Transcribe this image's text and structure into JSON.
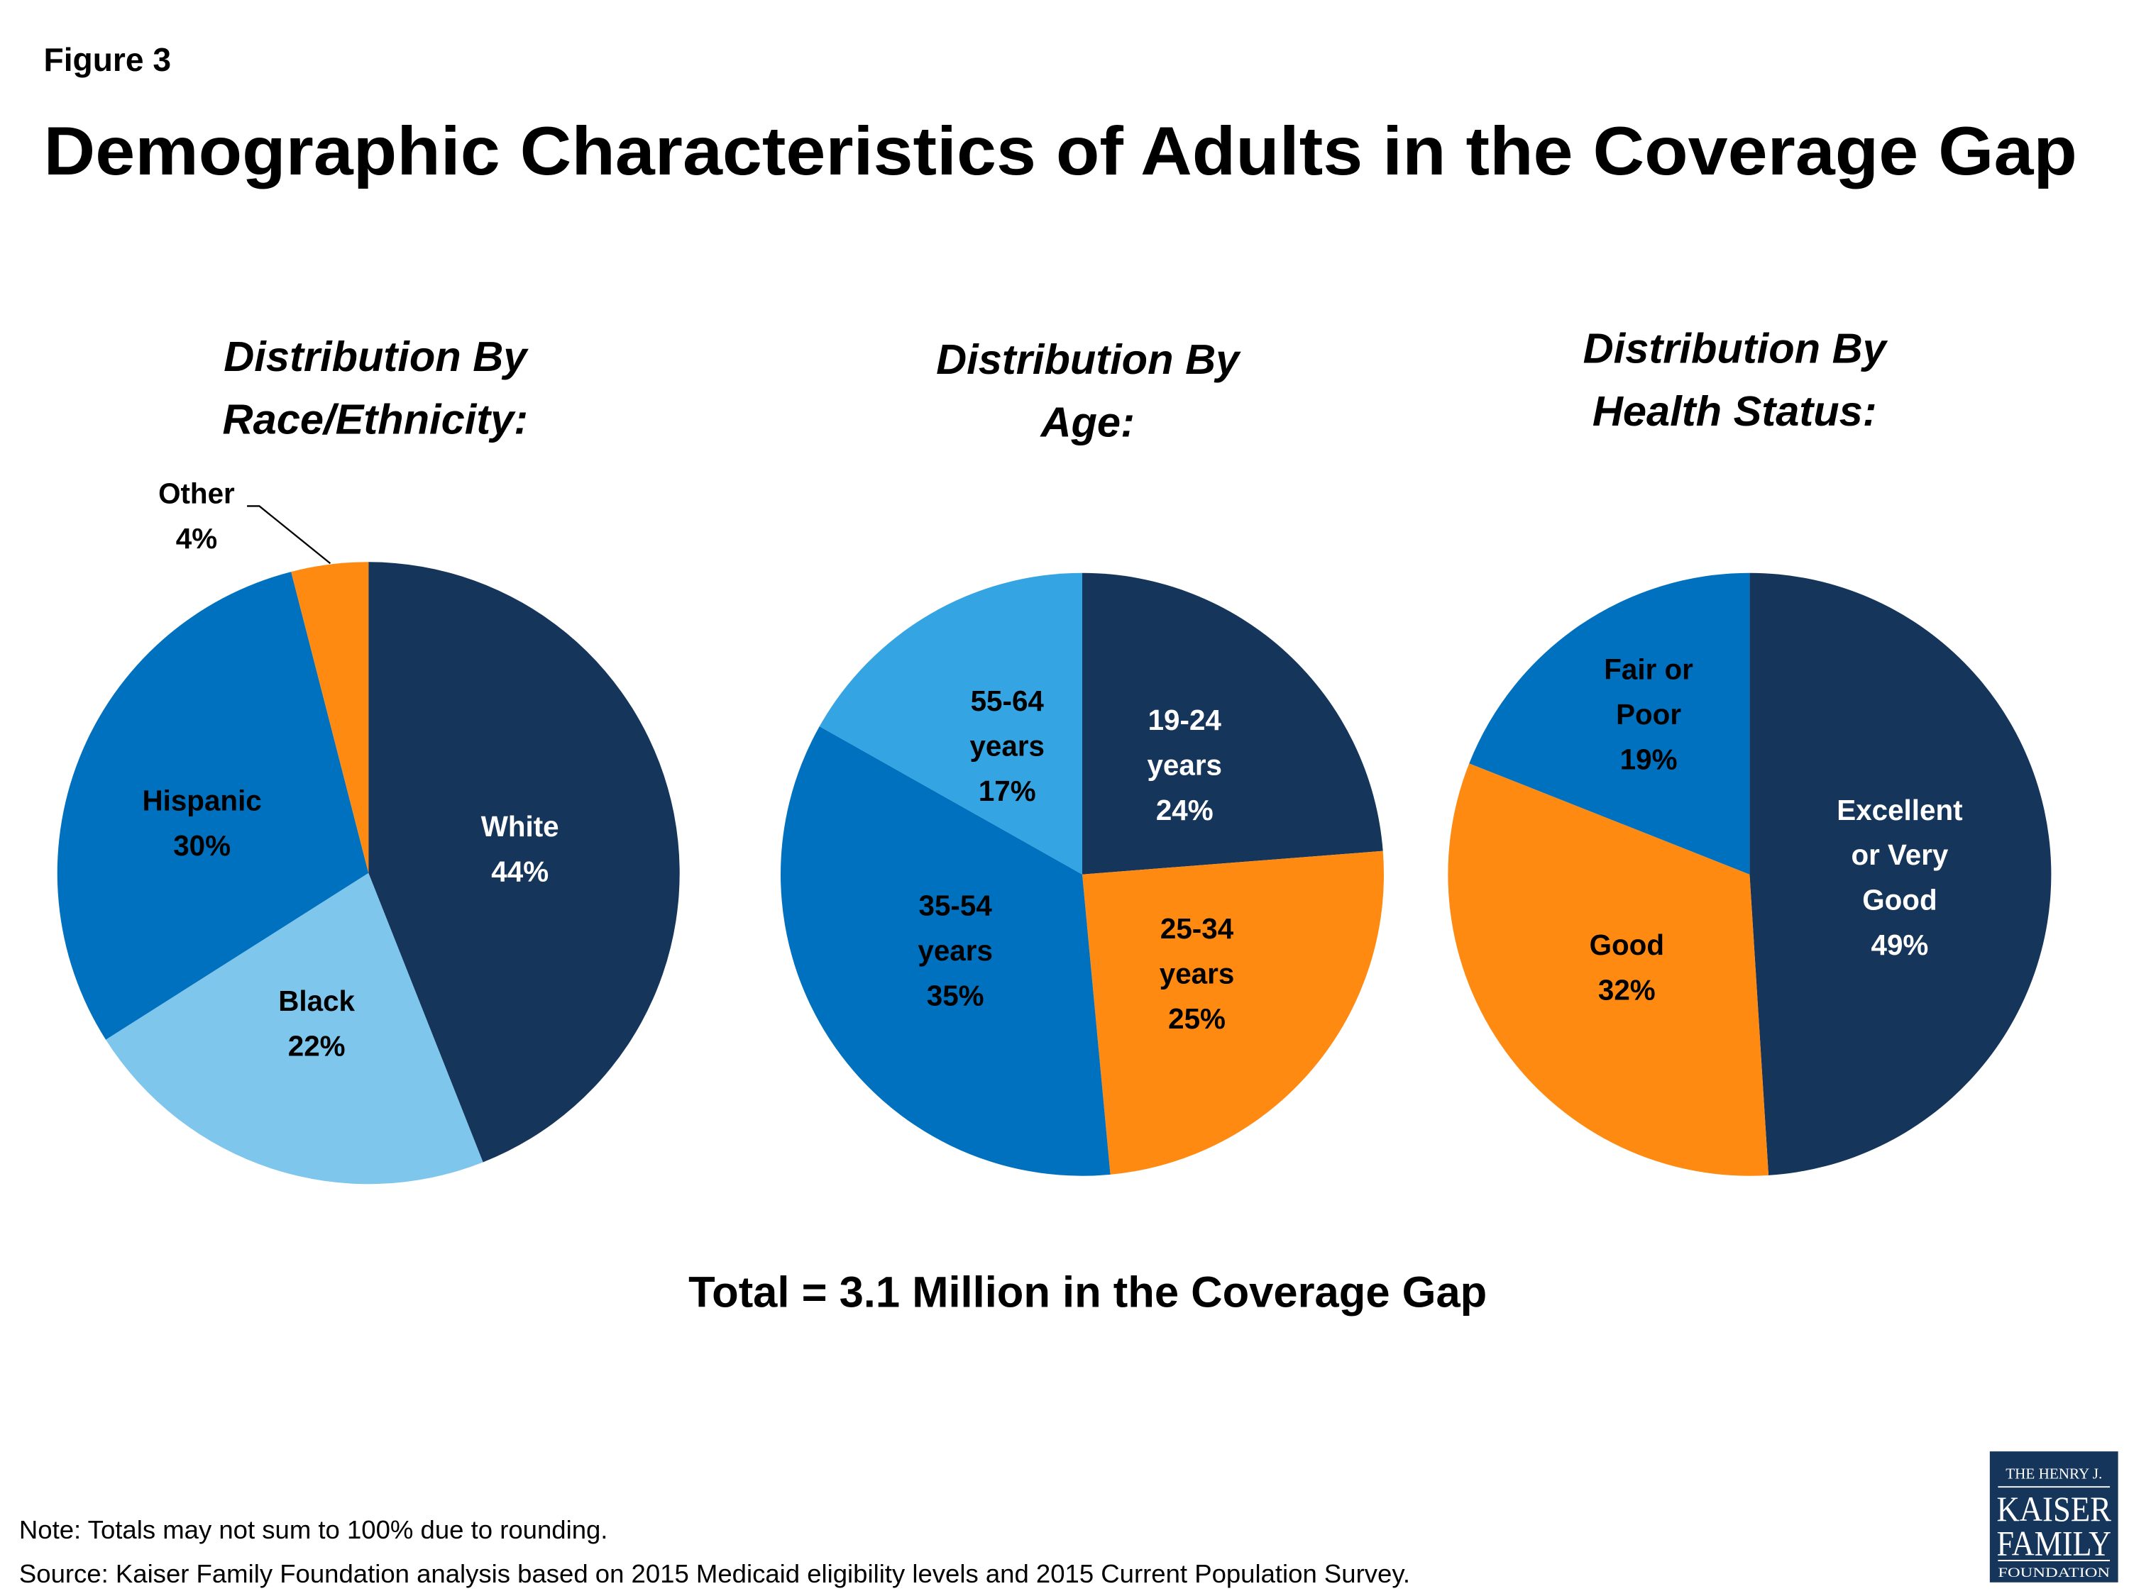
{
  "figure_label": "Figure 3",
  "title": "Demographic Characteristics of Adults in the Coverage Gap",
  "total_text": "Total = 3.1 Million in the Coverage Gap",
  "note": "Note: Totals may not sum to 100% due to rounding.",
  "source": "Source: Kaiser Family Foundation analysis based on 2015 Medicaid eligibility levels and 2015 Current Population Survey.",
  "logo": {
    "line1": "THE HENRY J.",
    "line2": "KAISER",
    "line3": "FAMILY",
    "line4": "FOUNDATION",
    "color": "#15355a"
  },
  "chart_data": [
    {
      "type": "pie",
      "title_lines": [
        "Distribution By",
        "Race/Ethnicity:"
      ],
      "start": "top",
      "direction": "clockwise",
      "slices": [
        {
          "name": "White",
          "value": 44,
          "label_lines": [
            "White",
            "44%"
          ],
          "color": "#15355a",
          "label_color": "#ffffff"
        },
        {
          "name": "Black",
          "value": 22,
          "label_lines": [
            "Black",
            "22%"
          ],
          "color": "#7fc6ed",
          "label_color": "#000000"
        },
        {
          "name": "Hispanic",
          "value": 30,
          "label_lines": [
            "Hispanic",
            "30%"
          ],
          "color": "#0071bf",
          "label_color": "#000000"
        },
        {
          "name": "Other",
          "value": 4,
          "label_lines": [
            "Other",
            "4%"
          ],
          "color": "#ff8a12",
          "label_color": "#000000"
        }
      ]
    },
    {
      "type": "pie",
      "title_lines": [
        "Distribution By",
        "Age:"
      ],
      "start": "top",
      "direction": "clockwise",
      "slices": [
        {
          "name": "19-24 years",
          "value": 24,
          "label_lines": [
            "19-24",
            "years",
            "24%"
          ],
          "color": "#15355a",
          "label_color": "#ffffff"
        },
        {
          "name": "25-34 years",
          "value": 25,
          "label_lines": [
            "25-34",
            "years",
            "25%"
          ],
          "color": "#ff8a12",
          "label_color": "#000000"
        },
        {
          "name": "35-54 years",
          "value": 35,
          "label_lines": [
            "35-54",
            "years",
            "35%"
          ],
          "color": "#0071bf",
          "label_color": "#000000"
        },
        {
          "name": "55-64 years",
          "value": 17,
          "label_lines": [
            "55-64",
            "years",
            "17%"
          ],
          "color": "#35a4e2",
          "label_color": "#000000"
        }
      ]
    },
    {
      "type": "pie",
      "title_lines": [
        "Distribution By",
        "Health Status:"
      ],
      "start": "top",
      "direction": "clockwise",
      "slices": [
        {
          "name": "Excellent or Very Good",
          "value": 49,
          "label_lines": [
            "Excellent",
            "or Very",
            "Good",
            "49%"
          ],
          "color": "#15355a",
          "label_color": "#ffffff"
        },
        {
          "name": "Good",
          "value": 32,
          "label_lines": [
            "Good",
            "32%"
          ],
          "color": "#ff8a12",
          "label_color": "#000000"
        },
        {
          "name": "Fair or Poor",
          "value": 19,
          "label_lines": [
            "Fair or",
            "Poor",
            "19%"
          ],
          "color": "#0071bf",
          "label_color": "#000000"
        }
      ]
    }
  ]
}
